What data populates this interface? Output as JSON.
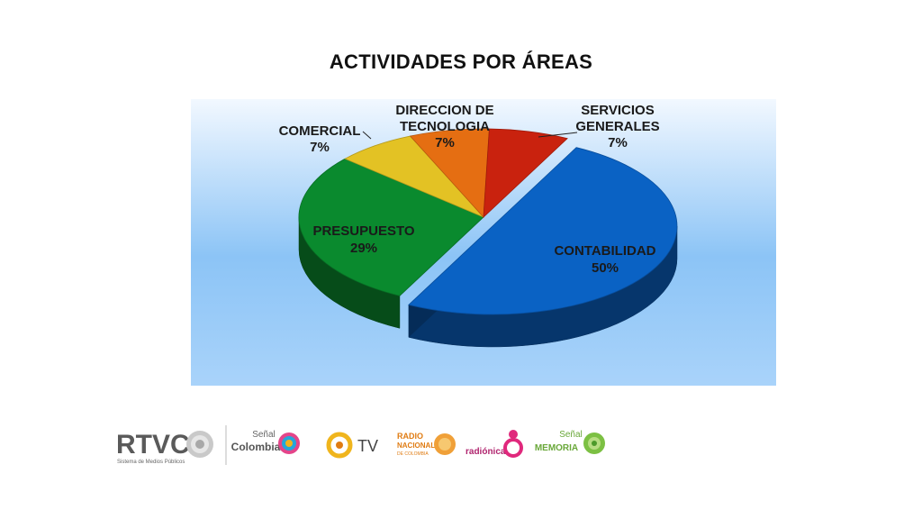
{
  "chart_data": {
    "type": "pie",
    "title": "ACTIVIDADES POR  ÁREAS",
    "slices": [
      {
        "name": "CONTABILIDAD",
        "value": 50,
        "label": "50%",
        "color": "#0a62c4"
      },
      {
        "name": "PRESUPUESTO",
        "value": 29,
        "label": "29%",
        "color": "#0a8a2e"
      },
      {
        "name": "COMERCIAL",
        "value": 7,
        "label": "7%",
        "color": "#e3c224"
      },
      {
        "name": "DIRECCION DE TECNOLOGIA",
        "value": 7,
        "label": "7%",
        "color": "#e56e12"
      },
      {
        "name": "SERVICIOS GENERALES",
        "value": 7,
        "label": "7%",
        "color": "#c9220e"
      }
    ],
    "three_d": true,
    "exploded_slice": "CONTABILIDAD"
  },
  "labels": {
    "contabilidad": {
      "name": "CONTABILIDAD",
      "pct": "50%"
    },
    "presupuesto": {
      "name": "PRESUPUESTO",
      "pct": "29%"
    },
    "comercial": {
      "name": "COMERCIAL",
      "pct": "7%"
    },
    "tecnologia": {
      "line1": "DIRECCION DE",
      "line2": "TECNOLOGIA",
      "pct": "7%"
    },
    "servicios": {
      "line1": "SERVICIOS",
      "line2": "GENERALES",
      "pct": "7%"
    }
  },
  "footer": {
    "rtvc": {
      "name": "RTVC",
      "tagline": "Sistema de Medios Públicos"
    },
    "senal_colombia": {
      "line1": "Señal",
      "line2": "Colombia"
    },
    "tv": {
      "name": "TV"
    },
    "radio_nacional": {
      "line1": "RADIO",
      "line2": "NACIONAL",
      "line3": "DE COLOMBIA"
    },
    "radionica": {
      "name": "radiónica"
    },
    "senal_memoria": {
      "line1": "Señal",
      "line2": "MEMORIA"
    }
  }
}
